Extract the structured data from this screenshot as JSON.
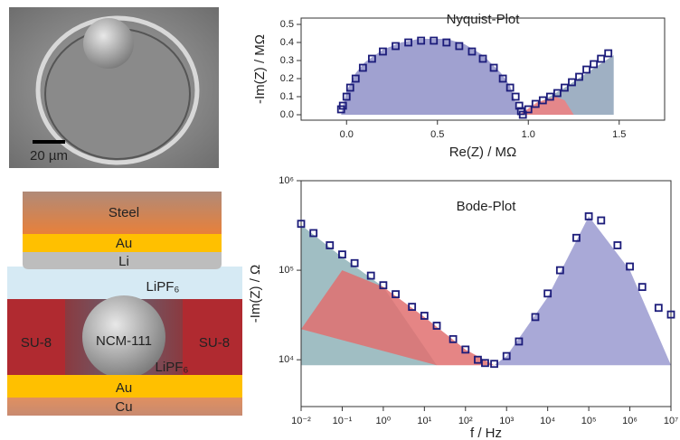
{
  "chart_data": [
    {
      "type": "scatter",
      "title": "Nyquist-Plot",
      "x_label": "Re(Z) / MΩ",
      "y_label": "-Im(Z) / MΩ",
      "xlim": [
        -0.25,
        1.75
      ],
      "ylim": [
        -0.03,
        0.535
      ],
      "xticks": [
        {
          "value": 0,
          "label": "0.0"
        },
        0.5,
        {
          "value": 1,
          "label": "1.0"
        },
        1.5
      ],
      "yticks": [
        {
          "value": 0,
          "label": "0.0"
        },
        0.1,
        0.2,
        0.3,
        0.4,
        0.5
      ],
      "log_x": false,
      "log_y": false,
      "fills": [
        {
          "color": "#8f90c8",
          "x": [
            -0.03,
            0.0,
            0.05,
            0.1,
            0.2,
            0.3,
            0.4,
            0.47,
            0.55,
            0.65,
            0.75,
            0.85,
            0.9,
            0.95
          ],
          "values": [
            0,
            0.13,
            0.23,
            0.29,
            0.36,
            0.4,
            0.42,
            0.42,
            0.42,
            0.39,
            0.33,
            0.23,
            0.16,
            0
          ]
        },
        {
          "color": "#8ea2b8",
          "x": [
            0.95,
            1.2,
            1.47,
            1.47
          ],
          "values": [
            0,
            0.15,
            0.33,
            0
          ]
        },
        {
          "color": "#f08080",
          "x": [
            0.95,
            1.05,
            1.15,
            1.2,
            1.25
          ],
          "values": [
            0,
            0.07,
            0.1,
            0.08,
            0
          ]
        }
      ],
      "series": [
        {
          "color": "#1c1c7a",
          "x": [
            -0.03,
            -0.02,
            0.0,
            0.02,
            0.05,
            0.09,
            0.14,
            0.2,
            0.27,
            0.34,
            0.41,
            0.48,
            0.55,
            0.62,
            0.69,
            0.75,
            0.81,
            0.86,
            0.9,
            0.93,
            0.95,
            0.96,
            0.97,
            1.0,
            1.04,
            1.08,
            1.12,
            1.16,
            1.2,
            1.24,
            1.28,
            1.32,
            1.36,
            1.4,
            1.44
          ],
          "values": [
            0.03,
            0.05,
            0.1,
            0.15,
            0.2,
            0.26,
            0.31,
            0.35,
            0.38,
            0.4,
            0.41,
            0.41,
            0.4,
            0.38,
            0.35,
            0.31,
            0.26,
            0.2,
            0.15,
            0.1,
            0.05,
            0.02,
            0.0,
            0.03,
            0.06,
            0.08,
            0.1,
            0.12,
            0.15,
            0.18,
            0.21,
            0.25,
            0.28,
            0.31,
            0.34
          ]
        }
      ]
    },
    {
      "type": "scatter",
      "title": "Bode-Plot",
      "x_label": "f / Hz",
      "y_label": "-Im(Z) / Ω",
      "xlim": [
        0.01,
        10000000
      ],
      "ylim": [
        3000,
        1000000
      ],
      "xticks": [
        {
          "value": 0.01,
          "label": "10⁻²"
        },
        {
          "value": 0.1,
          "label": "10⁻¹"
        },
        {
          "value": 1,
          "label": "10⁰"
        },
        {
          "value": 10,
          "label": "10¹"
        },
        {
          "value": 100,
          "label": "10²"
        },
        {
          "value": 1000,
          "label": "10³"
        },
        {
          "value": 10000,
          "label": "10⁴"
        },
        {
          "value": 100000,
          "label": "10⁵"
        },
        {
          "value": 1000000,
          "label": "10⁶"
        },
        {
          "value": 10000000,
          "label": "10⁷"
        }
      ],
      "yticks": [
        {
          "value": 10000,
          "label": "10⁴"
        },
        {
          "value": 100000,
          "label": "10⁵"
        },
        {
          "value": 1000000,
          "label": "10⁶"
        }
      ],
      "log_x": true,
      "log_y": true,
      "fills": [
        {
          "color": "#8fb3b8",
          "x": [
            0.01,
            0.1,
            1,
            20,
            0.01
          ],
          "values": [
            320000,
            140000,
            65000,
            8700,
            8700
          ]
        },
        {
          "color": "#e07070",
          "x": [
            0.01,
            0.1,
            1,
            10,
            100,
            500,
            20
          ],
          "values": [
            22000,
            100000,
            65000,
            30000,
            13000,
            8700,
            8700
          ]
        },
        {
          "color": "#9a9ad0",
          "x": [
            500,
            1000,
            10000,
            100000,
            1000000,
            10000000
          ],
          "values": [
            8700,
            11000,
            50000,
            400000,
            100000,
            8700
          ]
        }
      ],
      "series": [
        {
          "color": "#1c1c7a",
          "x": [
            0.01,
            0.02,
            0.05,
            0.1,
            0.2,
            0.5,
            1,
            2,
            5,
            10,
            20,
            50,
            100,
            200,
            300,
            500,
            1000,
            2000,
            5000,
            10000,
            20000,
            50000,
            100000,
            200000,
            500000,
            1000000,
            2000000,
            5000000,
            10000000
          ],
          "values": [
            330000,
            260000,
            190000,
            150000,
            120000,
            87000,
            68000,
            54000,
            39000,
            31000,
            24000,
            17000,
            13000,
            10000,
            9200,
            9000,
            11000,
            16000,
            30000,
            55000,
            100000,
            230000,
            400000,
            360000,
            190000,
            110000,
            65000,
            38000,
            32000
          ]
        }
      ]
    }
  ],
  "figure": {
    "scale_bar": "20 µm",
    "layers": {
      "steel": "Steel",
      "au_top": "Au",
      "li": "Li",
      "electrolyte_top": "LiPF₆",
      "su8_left": "SU-8",
      "particle": "NCM-111",
      "su8_right": "SU-8",
      "electrolyte_bottom": "LiPF₆",
      "au_bottom": "Au",
      "cu": "Cu"
    }
  }
}
